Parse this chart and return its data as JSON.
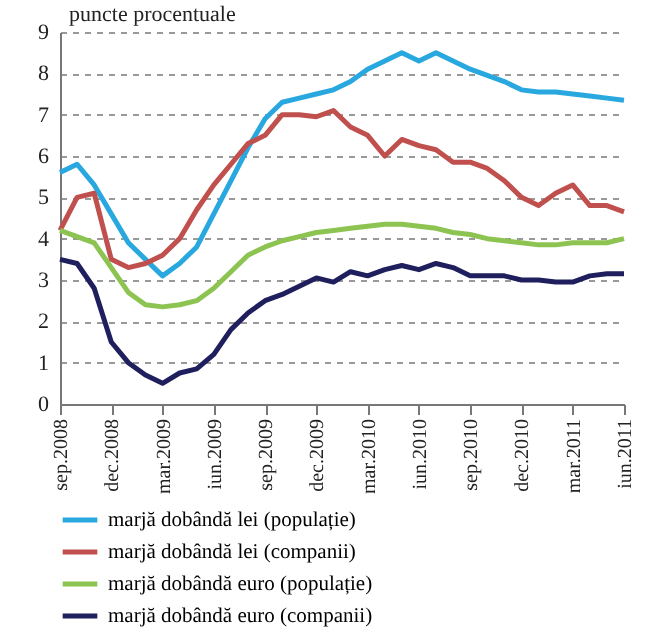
{
  "chart_data": {
    "type": "line",
    "ylabel": "puncte procentuale",
    "categories": [
      "sep.2008",
      null,
      null,
      "dec.2008",
      null,
      null,
      "mar.2009",
      null,
      null,
      "iun.2009",
      null,
      null,
      "sep.2009",
      null,
      null,
      "dec.2009",
      null,
      null,
      "mar.2010",
      null,
      null,
      "iun.2010",
      null,
      null,
      "sep.2010",
      null,
      null,
      "dec.2010",
      null,
      null,
      "mar.2011",
      null,
      null,
      "iun.2011"
    ],
    "series": [
      {
        "name": "marjă dobândă lei (populație)",
        "color": "#29a8e0",
        "values": [
          5.6,
          5.8,
          5.3,
          4.6,
          3.9,
          3.5,
          3.1,
          3.4,
          3.8,
          4.6,
          5.4,
          6.2,
          6.9,
          7.3,
          7.4,
          7.5,
          7.6,
          7.8,
          8.1,
          8.3,
          8.5,
          8.3,
          8.5,
          8.3,
          8.1,
          7.95,
          7.8,
          7.6,
          7.55,
          7.55,
          7.5,
          7.45,
          7.4,
          7.35
        ]
      },
      {
        "name": "marjă dobândă lei (companii)",
        "color": "#c0504d",
        "values": [
          4.2,
          5.0,
          5.1,
          3.5,
          3.3,
          3.4,
          3.6,
          4.0,
          4.7,
          5.3,
          5.8,
          6.3,
          6.5,
          7.0,
          7.0,
          6.95,
          7.1,
          6.7,
          6.5,
          6.0,
          6.4,
          6.25,
          6.15,
          5.85,
          5.85,
          5.7,
          5.4,
          5.0,
          4.8,
          5.1,
          5.3,
          4.8,
          4.8,
          4.65
        ]
      },
      {
        "name": "marjă dobândă euro (populație)",
        "color": "#8dc451",
        "values": [
          4.2,
          4.05,
          3.9,
          3.3,
          2.7,
          2.4,
          2.35,
          2.4,
          2.5,
          2.8,
          3.2,
          3.6,
          3.8,
          3.95,
          4.05,
          4.15,
          4.2,
          4.25,
          4.3,
          4.35,
          4.35,
          4.3,
          4.25,
          4.15,
          4.1,
          4.0,
          3.95,
          3.9,
          3.85,
          3.85,
          3.9,
          3.9,
          3.9,
          4.0
        ]
      },
      {
        "name": "marjă dobândă euro (companii)",
        "color": "#1f1f5e",
        "values": [
          3.5,
          3.4,
          2.8,
          1.5,
          1.0,
          0.7,
          0.5,
          0.75,
          0.85,
          1.2,
          1.8,
          2.2,
          2.5,
          2.65,
          2.85,
          3.05,
          2.95,
          3.2,
          3.1,
          3.25,
          3.35,
          3.25,
          3.4,
          3.3,
          3.1,
          3.1,
          3.1,
          3.0,
          3.0,
          2.95,
          2.95,
          3.1,
          3.15,
          3.15
        ]
      }
    ],
    "ylim": [
      0,
      9
    ],
    "yticks": [
      0,
      1,
      2,
      3,
      4,
      5,
      6,
      7,
      8,
      9
    ],
    "grid": "y",
    "legend": "bottom",
    "marker": "none",
    "line_style": "solid"
  }
}
